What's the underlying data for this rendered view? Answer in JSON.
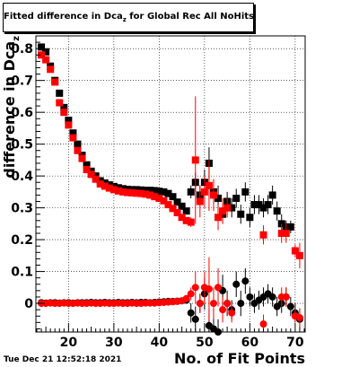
{
  "title": {
    "main": "Fitted difference in Dca",
    "sub": "z",
    "rest": " for Global Rec All NoHits"
  },
  "timestamp": "Tue Dec 21 12:52:18 2021",
  "chart_data": {
    "type": "scatter",
    "title": "Fitted difference in Dca_z for Global Rec All NoHits",
    "xlabel": "No. of Fit Points",
    "ylabel": "difference in Dca_z",
    "xlim": [
      12.8,
      72.2
    ],
    "ylim": [
      -0.09,
      0.84
    ],
    "xticks": [
      20,
      30,
      40,
      50,
      60,
      70
    ],
    "yticks": [
      0,
      0.1,
      0.2,
      0.3,
      0.4,
      0.5,
      0.6,
      0.7,
      0.8
    ],
    "ytick_labels": [
      "0",
      "0.1",
      "0.2",
      "0.3",
      "0.4",
      "0.5",
      "0.6",
      "0.7",
      "0.8"
    ],
    "colors": {
      "black_series": "#000000",
      "red_series": "#ff0000"
    },
    "series": [
      {
        "marker": "square",
        "color": "#000000",
        "points": [
          [
            14,
            0.805,
            0.004
          ],
          [
            15,
            0.79,
            0.004
          ],
          [
            16,
            0.745,
            0.004
          ],
          [
            17,
            0.7,
            0.004
          ],
          [
            18,
            0.66,
            0.004
          ],
          [
            19,
            0.615,
            0.004
          ],
          [
            20,
            0.575,
            0.004
          ],
          [
            21,
            0.535,
            0.004
          ],
          [
            22,
            0.5,
            0.004
          ],
          [
            23,
            0.465,
            0.004
          ],
          [
            24,
            0.435,
            0.004
          ],
          [
            25,
            0.415,
            0.004
          ],
          [
            26,
            0.4,
            0.004
          ],
          [
            27,
            0.385,
            0.003
          ],
          [
            28,
            0.378,
            0.003
          ],
          [
            29,
            0.372,
            0.003
          ],
          [
            30,
            0.367,
            0.003
          ],
          [
            31,
            0.363,
            0.003
          ],
          [
            32,
            0.36,
            0.003
          ],
          [
            33,
            0.358,
            0.003
          ],
          [
            34,
            0.357,
            0.003
          ],
          [
            35,
            0.357,
            0.003
          ],
          [
            36,
            0.356,
            0.003
          ],
          [
            37,
            0.355,
            0.003
          ],
          [
            38,
            0.355,
            0.003
          ],
          [
            39,
            0.354,
            0.003
          ],
          [
            40,
            0.352,
            0.003
          ],
          [
            41,
            0.35,
            0.004
          ],
          [
            42,
            0.345,
            0.004
          ],
          [
            43,
            0.335,
            0.005
          ],
          [
            44,
            0.318,
            0.006
          ],
          [
            45,
            0.305,
            0.008
          ],
          [
            46,
            0.29,
            0.01
          ],
          [
            47,
            0.35,
            0.02
          ],
          [
            48,
            0.38,
            0.03
          ],
          [
            49,
            0.34,
            0.03
          ],
          [
            50,
            0.38,
            0.04
          ],
          [
            51,
            0.44,
            0.05
          ],
          [
            52,
            0.35,
            0.04
          ],
          [
            53,
            0.33,
            0.04
          ],
          [
            54,
            0.28,
            0.03
          ],
          [
            55,
            0.32,
            0.03
          ],
          [
            56,
            0.3,
            0.03
          ],
          [
            57,
            0.33,
            0.03
          ],
          [
            58,
            0.28,
            0.03
          ],
          [
            59,
            0.35,
            0.03
          ],
          [
            60,
            0.27,
            0.03
          ],
          [
            61,
            0.31,
            0.03
          ],
          [
            62,
            0.31,
            0.03
          ],
          [
            63,
            0.3,
            0.03
          ],
          [
            64,
            0.31,
            0.03
          ],
          [
            65,
            0.34,
            0.03
          ],
          [
            66,
            0.29,
            0.03
          ],
          [
            67,
            0.25,
            0.03
          ],
          [
            68,
            0.24,
            0.02
          ],
          [
            69,
            0.24,
            0.02
          ]
        ]
      },
      {
        "marker": "square",
        "color": "#ff0000",
        "points": [
          [
            14,
            0.78,
            0.004
          ],
          [
            15,
            0.765,
            0.004
          ],
          [
            16,
            0.735,
            0.004
          ],
          [
            17,
            0.695,
            0.004
          ],
          [
            18,
            0.63,
            0.004
          ],
          [
            19,
            0.6,
            0.004
          ],
          [
            20,
            0.56,
            0.004
          ],
          [
            21,
            0.52,
            0.004
          ],
          [
            22,
            0.48,
            0.004
          ],
          [
            23,
            0.455,
            0.004
          ],
          [
            24,
            0.42,
            0.004
          ],
          [
            25,
            0.405,
            0.004
          ],
          [
            26,
            0.39,
            0.004
          ],
          [
            27,
            0.375,
            0.003
          ],
          [
            28,
            0.368,
            0.003
          ],
          [
            29,
            0.362,
            0.003
          ],
          [
            30,
            0.357,
            0.003
          ],
          [
            31,
            0.353,
            0.003
          ],
          [
            32,
            0.35,
            0.003
          ],
          [
            33,
            0.348,
            0.003
          ],
          [
            34,
            0.347,
            0.003
          ],
          [
            35,
            0.346,
            0.003
          ],
          [
            36,
            0.345,
            0.003
          ],
          [
            37,
            0.343,
            0.003
          ],
          [
            38,
            0.34,
            0.003
          ],
          [
            39,
            0.335,
            0.003
          ],
          [
            40,
            0.33,
            0.003
          ],
          [
            41,
            0.322,
            0.004
          ],
          [
            42,
            0.31,
            0.004
          ],
          [
            43,
            0.298,
            0.005
          ],
          [
            44,
            0.285,
            0.006
          ],
          [
            45,
            0.27,
            0.008
          ],
          [
            46,
            0.26,
            0.01
          ],
          [
            47,
            0.255,
            0.015
          ],
          [
            48,
            0.45,
            0.2
          ],
          [
            49,
            0.32,
            0.05
          ],
          [
            50,
            0.35,
            0.05
          ],
          [
            51,
            0.37,
            0.08
          ],
          [
            52,
            0.34,
            0.05
          ],
          [
            53,
            0.27,
            0.04
          ],
          [
            54,
            0.29,
            0.04
          ],
          [
            55,
            0.3,
            0.03
          ],
          [
            63,
            0.215,
            0.03
          ],
          [
            67,
            0.22,
            0.03
          ],
          [
            68,
            0.22,
            0.03
          ],
          [
            70,
            0.165,
            0.02
          ],
          [
            71,
            0.15,
            0.04
          ]
        ]
      },
      {
        "marker": "circle",
        "color": "#000000",
        "points": [
          [
            14,
            0.002,
            0.004
          ],
          [
            15,
            0.001,
            0.004
          ],
          [
            16,
            0.002,
            0.004
          ],
          [
            17,
            0.002,
            0.004
          ],
          [
            18,
            0.001,
            0.004
          ],
          [
            19,
            0.002,
            0.004
          ],
          [
            20,
            0.002,
            0.004
          ],
          [
            21,
            0.001,
            0.004
          ],
          [
            22,
            0.002,
            0.004
          ],
          [
            23,
            0.002,
            0.004
          ],
          [
            24,
            0.002,
            0.004
          ],
          [
            25,
            0.003,
            0.004
          ],
          [
            26,
            0.002,
            0.004
          ],
          [
            27,
            0.002,
            0.004
          ],
          [
            28,
            0.003,
            0.004
          ],
          [
            29,
            0.002,
            0.004
          ],
          [
            30,
            0.002,
            0.004
          ],
          [
            31,
            0.003,
            0.004
          ],
          [
            32,
            0.002,
            0.004
          ],
          [
            33,
            0.002,
            0.004
          ],
          [
            34,
            0.003,
            0.004
          ],
          [
            35,
            0.002,
            0.004
          ],
          [
            36,
            0.003,
            0.004
          ],
          [
            37,
            0.003,
            0.004
          ],
          [
            38,
            0.002,
            0.004
          ],
          [
            39,
            0.003,
            0.004
          ],
          [
            40,
            0.004,
            0.004
          ],
          [
            41,
            0.005,
            0.005
          ],
          [
            42,
            0.006,
            0.005
          ],
          [
            43,
            0.006,
            0.006
          ],
          [
            44,
            0.007,
            0.006
          ],
          [
            45,
            0.008,
            0.008
          ],
          [
            46,
            0.01,
            0.01
          ],
          [
            47,
            -0.03,
            0.03
          ],
          [
            48,
            -0.05,
            0.04
          ],
          [
            49,
            0.0,
            0.03
          ],
          [
            50,
            0.03,
            0.05
          ],
          [
            51,
            -0.07,
            0.05
          ],
          [
            52,
            -0.08,
            0.04
          ],
          [
            53,
            -0.09,
            0.04
          ],
          [
            54,
            0.04,
            0.05
          ],
          [
            55,
            0.0,
            0.04
          ],
          [
            56,
            -0.02,
            0.03
          ],
          [
            57,
            0.06,
            0.04
          ],
          [
            58,
            0.0,
            0.04
          ],
          [
            59,
            0.07,
            0.04
          ],
          [
            60,
            0.02,
            0.03
          ],
          [
            61,
            0.0,
            0.03
          ],
          [
            62,
            0.01,
            0.03
          ],
          [
            63,
            0.02,
            0.03
          ],
          [
            64,
            0.03,
            0.03
          ],
          [
            65,
            0.02,
            0.03
          ],
          [
            66,
            -0.01,
            0.03
          ],
          [
            67,
            0.0,
            0.03
          ],
          [
            68,
            0.02,
            0.03
          ],
          [
            69,
            -0.01,
            0.03
          ],
          [
            70,
            -0.03,
            0.03
          ],
          [
            71,
            -0.05,
            0.03
          ]
        ]
      },
      {
        "marker": "circle",
        "color": "#ff0000",
        "points": [
          [
            14,
            0.0,
            0.004
          ],
          [
            15,
            0.0,
            0.004
          ],
          [
            16,
            0.001,
            0.004
          ],
          [
            17,
            0.0,
            0.004
          ],
          [
            18,
            0.0,
            0.004
          ],
          [
            19,
            0.001,
            0.004
          ],
          [
            20,
            0.0,
            0.004
          ],
          [
            21,
            0.0,
            0.004
          ],
          [
            22,
            0.001,
            0.004
          ],
          [
            23,
            0.0,
            0.004
          ],
          [
            24,
            0.0,
            0.004
          ],
          [
            25,
            0.001,
            0.004
          ],
          [
            26,
            0.0,
            0.004
          ],
          [
            27,
            0.0,
            0.004
          ],
          [
            28,
            0.001,
            0.004
          ],
          [
            29,
            0.0,
            0.004
          ],
          [
            30,
            0.0,
            0.004
          ],
          [
            31,
            0.001,
            0.004
          ],
          [
            32,
            0.0,
            0.004
          ],
          [
            33,
            0.0,
            0.004
          ],
          [
            34,
            0.001,
            0.004
          ],
          [
            35,
            0.0,
            0.004
          ],
          [
            36,
            0.0,
            0.004
          ],
          [
            37,
            0.001,
            0.004
          ],
          [
            38,
            0.001,
            0.004
          ],
          [
            39,
            0.001,
            0.004
          ],
          [
            40,
            0.002,
            0.004
          ],
          [
            41,
            0.003,
            0.005
          ],
          [
            42,
            0.004,
            0.005
          ],
          [
            43,
            0.005,
            0.006
          ],
          [
            44,
            0.006,
            0.006
          ],
          [
            45,
            0.008,
            0.008
          ],
          [
            46,
            0.015,
            0.01
          ],
          [
            47,
            0.03,
            0.02
          ],
          [
            48,
            0.05,
            0.05
          ],
          [
            49,
            0.0,
            0.03
          ],
          [
            50,
            0.05,
            0.05
          ],
          [
            51,
            0.045,
            0.1
          ],
          [
            52,
            0.0,
            0.05
          ],
          [
            53,
            0.05,
            0.06
          ],
          [
            54,
            -0.02,
            0.04
          ],
          [
            55,
            0.0,
            0.03
          ],
          [
            56,
            -0.03,
            0.03
          ],
          [
            63,
            -0.065,
            0.03
          ],
          [
            67,
            0.02,
            0.03
          ],
          [
            68,
            0.02,
            0.03
          ],
          [
            70,
            -0.04,
            0.02
          ],
          [
            71,
            -0.045,
            0.03
          ]
        ]
      }
    ]
  }
}
